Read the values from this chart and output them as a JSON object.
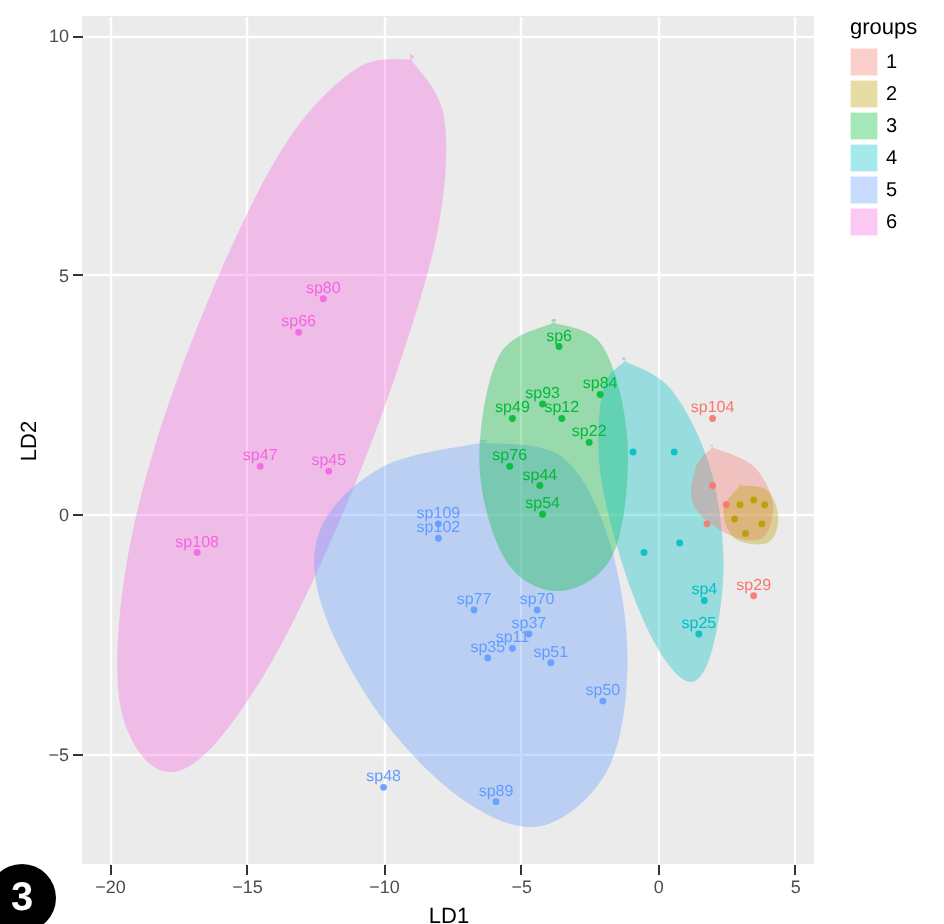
{
  "chart_data": {
    "type": "scatter",
    "xlabel": "LD1",
    "ylabel": "LD2",
    "legend_title": "groups",
    "legend": "right",
    "grid": true,
    "xlim": [
      -21,
      5.7
    ],
    "ylim": [
      -7.3,
      10.4
    ],
    "xticks": [
      -20,
      -15,
      -10,
      -5,
      0,
      5
    ],
    "yticks": [
      -5,
      0,
      5,
      10
    ],
    "annotations": [
      "3"
    ],
    "series": [
      {
        "type": "area",
        "color": "#f564e3",
        "x": [
          -9.0,
          -7.8,
          -8.0,
          -9.5,
          -11.5,
          -14,
          -16.5,
          -18.3,
          -19.6,
          -19.5,
          -18.3,
          -16,
          -13.5,
          -11
        ],
        "values": [
          9.5,
          8.3,
          6.0,
          3.0,
          0,
          -3,
          -5,
          -5.3,
          -4,
          -1.5,
          1.5,
          5,
          7.8,
          9.3
        ]
      },
      {
        "type": "area",
        "color": "#619cff",
        "x": [
          -6.4,
          -3.5,
          -1.8,
          -1.1,
          -1.8,
          -4.2,
          -7,
          -10,
          -12.2,
          -12.3,
          -10
        ],
        "values": [
          1.5,
          1.2,
          -0.5,
          -3,
          -5.3,
          -6.5,
          -6,
          -4.3,
          -2,
          -0.3,
          1
        ]
      },
      {
        "type": "area",
        "color": "#00ba38",
        "x": [
          -3.8,
          -2,
          -1.1,
          -1.6,
          -3.5,
          -5.5,
          -6.5,
          -5.8
        ],
        "values": [
          4.0,
          3.5,
          1.5,
          -0.8,
          -1.6,
          -1.0,
          1,
          3.3
        ]
      },
      {
        "type": "area",
        "color": "#00bfc4",
        "x": [
          -1.2,
          0.5,
          1.9,
          2.4,
          2.0,
          1.2,
          0,
          -1.2,
          -2.1,
          -2.0
        ],
        "values": [
          3.2,
          2.6,
          1.0,
          -1,
          -2.8,
          -3.5,
          -2.8,
          -1.2,
          0.9,
          2.6
        ]
      },
      {
        "type": "area",
        "color": "#f8766d",
        "x": [
          2.0,
          3.5,
          4.2,
          3.8,
          2.5,
          1.3,
          1.4
        ],
        "values": [
          1.4,
          1.0,
          0.2,
          -0.5,
          -0.4,
          0.2,
          1.0
        ]
      },
      {
        "type": "area",
        "color": "#b79f00",
        "x": [
          3.0,
          4.0,
          4.4,
          4.0,
          2.8,
          2.4
        ],
        "values": [
          0.6,
          0.5,
          -0.1,
          -0.6,
          -0.5,
          0.1
        ]
      },
      {
        "name": "1",
        "color": "#f8766d",
        "x": [
          2.0,
          3.5,
          2.0,
          2.5,
          1.8
        ],
        "values": [
          2.0,
          -1.7,
          0.6,
          0.2,
          -0.2
        ],
        "value_labels": [
          "sp104",
          "sp29",
          null,
          null,
          null
        ]
      },
      {
        "name": "2",
        "color": "#b79f00",
        "x": [
          3.0,
          3.5,
          3.8,
          3.2,
          3.9,
          2.8
        ],
        "values": [
          0.2,
          0.3,
          -0.2,
          -0.4,
          0.2,
          -0.1
        ],
        "value_labels": [
          null,
          null,
          null,
          null,
          null,
          null
        ]
      },
      {
        "name": "3",
        "color": "#00ba38",
        "x": [
          -3.6,
          -4.2,
          -2.1,
          -3.5,
          -5.3,
          -2.5,
          -5.4,
          -4.3,
          -4.2
        ],
        "values": [
          3.5,
          2.3,
          2.5,
          2.0,
          2.0,
          1.5,
          1.0,
          0.6,
          0.0
        ],
        "value_labels": [
          "sp6",
          "sp93",
          "sp84",
          "sp12",
          "sp49",
          "sp22",
          "sp76",
          "sp44",
          "sp54"
        ]
      },
      {
        "name": "4",
        "color": "#00bfc4",
        "x": [
          -0.9,
          0.6,
          -0.5,
          0.8,
          1.7,
          1.5
        ],
        "values": [
          1.3,
          1.3,
          -0.8,
          -0.6,
          -1.8,
          -2.5
        ],
        "value_labels": [
          null,
          null,
          null,
          null,
          "sp4",
          "sp25"
        ]
      },
      {
        "name": "5",
        "color": "#619cff",
        "x": [
          -8.0,
          -8.0,
          -6.7,
          -4.4,
          -4.7,
          -6.2,
          -5.3,
          -3.9,
          -2.0,
          -10.0,
          -5.9
        ],
        "values": [
          -0.2,
          -0.5,
          -2.0,
          -2.0,
          -2.5,
          -3.0,
          -2.8,
          -3.1,
          -3.9,
          -5.7,
          -6.0
        ],
        "value_labels": [
          "sp109",
          "sp102",
          "sp77",
          "sp70",
          "sp37",
          "sp35",
          "sp11",
          "sp51",
          "sp50",
          "sp48",
          "sp89"
        ]
      },
      {
        "name": "6",
        "color": "#f564e3",
        "x": [
          -12.2,
          -13.1,
          -14.5,
          -12.0,
          -16.8
        ],
        "values": [
          4.5,
          3.8,
          1.0,
          0.9,
          -0.8
        ],
        "value_labels": [
          "sp80",
          "sp66",
          "sp47",
          "sp45",
          "sp108"
        ]
      }
    ]
  }
}
